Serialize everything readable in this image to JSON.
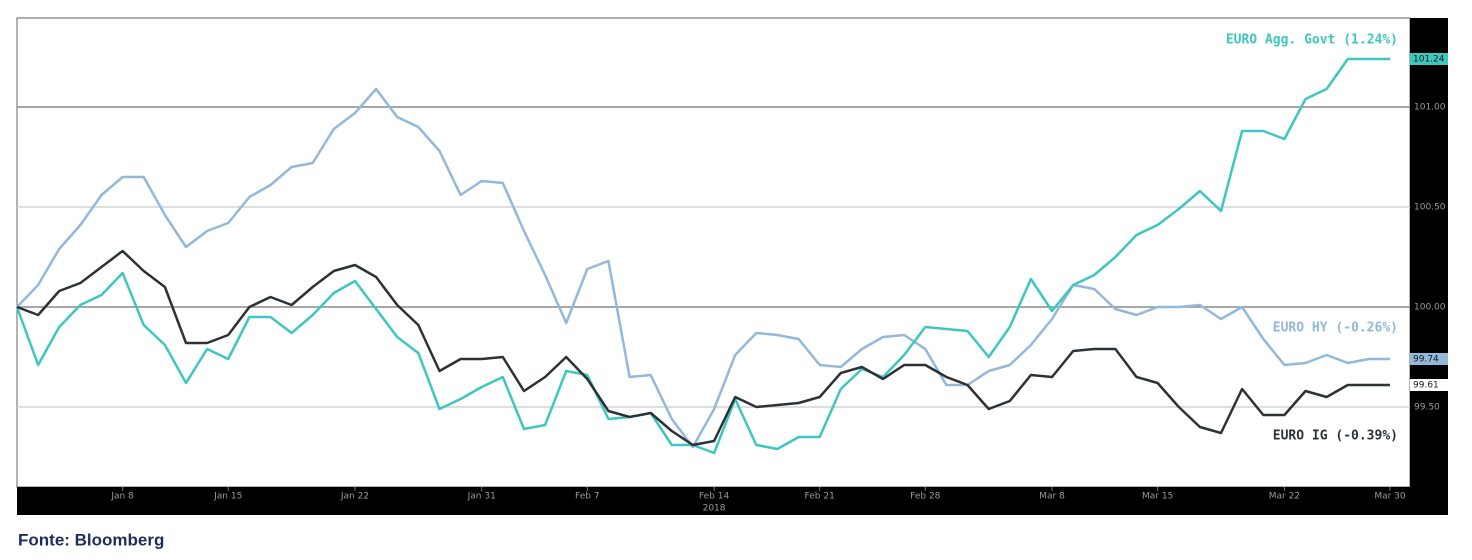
{
  "chart_data": {
    "type": "line",
    "x_label": "2018",
    "source": "Fonte: Bloomberg",
    "categories": [
      null,
      null,
      null,
      null,
      null,
      "Jan 8",
      null,
      null,
      null,
      null,
      "Jan 15",
      null,
      null,
      null,
      null,
      null,
      "Jan 22",
      null,
      null,
      null,
      null,
      null,
      "Jan 31",
      null,
      null,
      null,
      null,
      "Feb 7",
      null,
      null,
      null,
      null,
      null,
      "Feb 14",
      null,
      null,
      null,
      null,
      "Feb 21",
      null,
      null,
      null,
      null,
      "Feb 28",
      null,
      null,
      null,
      null,
      null,
      "Mar 8",
      null,
      null,
      null,
      null,
      "Mar 15",
      null,
      null,
      null,
      null,
      null,
      "Mar 22",
      null,
      null,
      null,
      null,
      "Mar 30"
    ],
    "ylim": [
      99.1,
      101.445
    ],
    "yticks": [
      {
        "value": 99.5,
        "label": "99.50"
      },
      {
        "value": 100,
        "label": "100.00"
      },
      {
        "value": 100.5,
        "label": "100.50"
      },
      {
        "value": 101,
        "label": "101.00"
      }
    ],
    "grid": true,
    "series": [
      {
        "name": "EURO HY (-0.26%)",
        "color": "#93b8da",
        "end_label": "99.74",
        "values": [
          100.0,
          100.11,
          100.29,
          100.41,
          100.56,
          100.65,
          100.65,
          100.46,
          100.3,
          100.38,
          100.42,
          100.55,
          100.61,
          100.7,
          100.72,
          100.89,
          100.97,
          101.09,
          100.95,
          100.9,
          100.78,
          100.56,
          100.63,
          100.62,
          100.38,
          100.16,
          99.92,
          100.19,
          100.23,
          99.65,
          99.66,
          99.44,
          99.3,
          99.49,
          99.76,
          99.87,
          99.86,
          99.84,
          99.71,
          99.7,
          99.79,
          99.85,
          99.86,
          99.79,
          99.61,
          99.61,
          99.68,
          99.71,
          99.81,
          99.94,
          100.11,
          100.09,
          99.99,
          99.96,
          100.0,
          100.0,
          100.01,
          99.94,
          100.0,
          99.84,
          99.71,
          99.72,
          99.76,
          99.72,
          99.74,
          99.74
        ]
      },
      {
        "name": "EURO Agg. Govt (1.24%)",
        "color": "#3ec7bf",
        "end_label": "101.24",
        "values": [
          100.0,
          99.71,
          99.9,
          100.01,
          100.06,
          100.17,
          99.91,
          99.81,
          99.62,
          99.79,
          99.74,
          99.95,
          99.95,
          99.87,
          99.96,
          100.07,
          100.13,
          99.99,
          99.85,
          99.77,
          99.49,
          99.54,
          99.6,
          99.65,
          99.39,
          99.41,
          99.68,
          99.66,
          99.44,
          99.45,
          99.47,
          99.31,
          99.31,
          99.27,
          99.54,
          99.31,
          99.29,
          99.35,
          99.35,
          99.59,
          99.69,
          99.65,
          99.76,
          99.9,
          99.89,
          99.88,
          99.75,
          99.9,
          100.14,
          99.98,
          100.11,
          100.16,
          100.25,
          100.36,
          100.41,
          100.49,
          100.58,
          100.48,
          100.88,
          100.88,
          100.84,
          101.04,
          101.09,
          101.24,
          101.24,
          101.24
        ]
      },
      {
        "name": "EURO IG (-0.39%)",
        "color": "#2d3237",
        "end_label": "99.61",
        "values": [
          100.0,
          99.96,
          100.08,
          100.12,
          100.2,
          100.28,
          100.18,
          100.1,
          99.82,
          99.82,
          99.86,
          100.0,
          100.05,
          100.01,
          100.1,
          100.18,
          100.21,
          100.15,
          100.01,
          99.91,
          99.68,
          99.74,
          99.74,
          99.75,
          99.58,
          99.65,
          99.75,
          99.64,
          99.48,
          99.45,
          99.47,
          99.38,
          99.31,
          99.33,
          99.55,
          99.5,
          99.51,
          99.52,
          99.55,
          99.67,
          99.7,
          99.64,
          99.71,
          99.71,
          99.65,
          99.61,
          99.49,
          99.53,
          99.66,
          99.65,
          99.78,
          99.79,
          99.79,
          99.65,
          99.62,
          99.5,
          99.4,
          99.37,
          99.59,
          99.46,
          99.46,
          99.58,
          99.55,
          99.61,
          99.61,
          99.61
        ]
      }
    ]
  }
}
